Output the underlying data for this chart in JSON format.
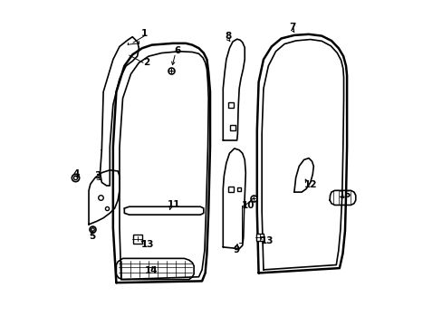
{
  "background_color": "#ffffff",
  "line_color": "#000000",
  "line_width": 1.2,
  "fig_width": 4.89,
  "fig_height": 3.6,
  "dpi": 100
}
